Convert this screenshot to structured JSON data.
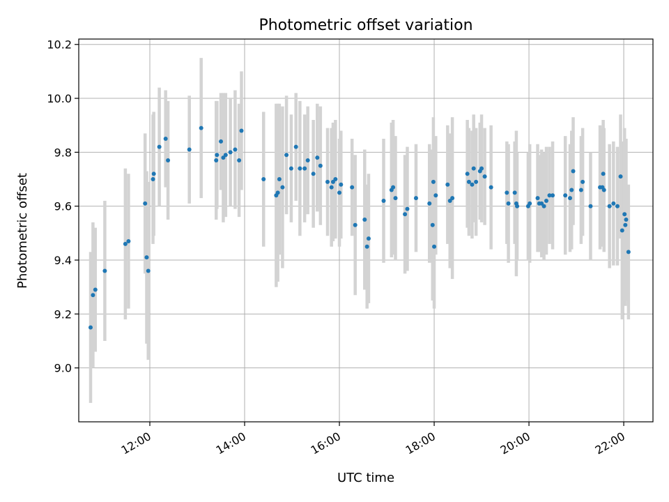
{
  "colors": {
    "points": "#1f77b4",
    "error_bars": "#d3d3d3",
    "grid": "#b0b0b0"
  },
  "chart_data": {
    "type": "scatter",
    "title": "Photometric offset variation",
    "xlabel": "UTC time",
    "ylabel": "Photometric offset",
    "x_unit": "UTC hours",
    "xlim": [
      "10:30",
      "22:37"
    ],
    "ylim": [
      8.8,
      10.22
    ],
    "grid": true,
    "legend": "none",
    "xticks": [
      {
        "label": "12:00",
        "value": "12:00"
      },
      {
        "label": "14:00",
        "value": "14:00"
      },
      {
        "label": "16:00",
        "value": "16:00"
      },
      {
        "label": "18:00",
        "value": "18:00"
      },
      {
        "label": "20:00",
        "value": "20:00"
      },
      {
        "label": "22:00",
        "value": "22:00"
      }
    ],
    "yticks": [
      {
        "label": "9.0",
        "value": 9.0
      },
      {
        "label": "9.2",
        "value": 9.2
      },
      {
        "label": "9.4",
        "value": 9.4
      },
      {
        "label": "9.6",
        "value": 9.6
      },
      {
        "label": "9.8",
        "value": 9.8
      },
      {
        "label": "10.0",
        "value": 10.0
      },
      {
        "label": "10.2",
        "value": 10.2
      }
    ],
    "points": [
      {
        "x": "10:45",
        "y": 9.15,
        "yerr": 0.28
      },
      {
        "x": "10:48",
        "y": 9.27,
        "yerr": 0.27
      },
      {
        "x": "10:51",
        "y": 9.29,
        "yerr": 0.23
      },
      {
        "x": "11:03",
        "y": 9.36,
        "yerr": 0.26
      },
      {
        "x": "11:29",
        "y": 9.46,
        "yerr": 0.28
      },
      {
        "x": "11:33",
        "y": 9.47,
        "yerr": 0.25
      },
      {
        "x": "11:54",
        "y": 9.61,
        "yerr": 0.26
      },
      {
        "x": "11:56",
        "y": 9.41,
        "yerr": 0.32
      },
      {
        "x": "11:58",
        "y": 9.36,
        "yerr": 0.33
      },
      {
        "x": "12:04",
        "y": 9.7,
        "yerr": 0.24
      },
      {
        "x": "12:05",
        "y": 9.72,
        "yerr": 0.23
      },
      {
        "x": "12:12",
        "y": 9.82,
        "yerr": 0.22
      },
      {
        "x": "12:20",
        "y": 9.85,
        "yerr": 0.18
      },
      {
        "x": "12:23",
        "y": 9.77,
        "yerr": 0.22
      },
      {
        "x": "12:50",
        "y": 9.81,
        "yerr": 0.2
      },
      {
        "x": "13:05",
        "y": 9.89,
        "yerr": 0.26
      },
      {
        "x": "13:24",
        "y": 9.77,
        "yerr": 0.22
      },
      {
        "x": "13:25",
        "y": 9.79,
        "yerr": 0.2
      },
      {
        "x": "13:30",
        "y": 9.84,
        "yerr": 0.18
      },
      {
        "x": "13:33",
        "y": 9.78,
        "yerr": 0.24
      },
      {
        "x": "13:36",
        "y": 9.79,
        "yerr": 0.23
      },
      {
        "x": "13:42",
        "y": 9.8,
        "yerr": 0.2
      },
      {
        "x": "13:48",
        "y": 9.81,
        "yerr": 0.22
      },
      {
        "x": "13:53",
        "y": 9.77,
        "yerr": 0.21
      },
      {
        "x": "13:56",
        "y": 9.88,
        "yerr": 0.22
      },
      {
        "x": "14:24",
        "y": 9.7,
        "yerr": 0.25
      },
      {
        "x": "14:40",
        "y": 9.64,
        "yerr": 0.34
      },
      {
        "x": "14:42",
        "y": 9.65,
        "yerr": 0.33
      },
      {
        "x": "14:44",
        "y": 9.7,
        "yerr": 0.28
      },
      {
        "x": "14:48",
        "y": 9.67,
        "yerr": 0.3
      },
      {
        "x": "14:53",
        "y": 9.79,
        "yerr": 0.22
      },
      {
        "x": "14:59",
        "y": 9.74,
        "yerr": 0.2
      },
      {
        "x": "15:05",
        "y": 9.82,
        "yerr": 0.2
      },
      {
        "x": "15:10",
        "y": 9.74,
        "yerr": 0.25
      },
      {
        "x": "15:16",
        "y": 9.74,
        "yerr": 0.2
      },
      {
        "x": "15:20",
        "y": 9.77,
        "yerr": 0.2
      },
      {
        "x": "15:27",
        "y": 9.72,
        "yerr": 0.2
      },
      {
        "x": "15:32",
        "y": 9.78,
        "yerr": 0.2
      },
      {
        "x": "15:36",
        "y": 9.75,
        "yerr": 0.22
      },
      {
        "x": "15:45",
        "y": 9.69,
        "yerr": 0.2
      },
      {
        "x": "15:50",
        "y": 9.67,
        "yerr": 0.22
      },
      {
        "x": "15:52",
        "y": 9.69,
        "yerr": 0.22
      },
      {
        "x": "15:55",
        "y": 9.7,
        "yerr": 0.22
      },
      {
        "x": "16:00",
        "y": 9.65,
        "yerr": 0.2
      },
      {
        "x": "16:02",
        "y": 9.68,
        "yerr": 0.2
      },
      {
        "x": "16:16",
        "y": 9.67,
        "yerr": 0.18
      },
      {
        "x": "16:20",
        "y": 9.53,
        "yerr": 0.26
      },
      {
        "x": "16:32",
        "y": 9.55,
        "yerr": 0.26
      },
      {
        "x": "16:35",
        "y": 9.45,
        "yerr": 0.23
      },
      {
        "x": "16:37",
        "y": 9.48,
        "yerr": 0.24
      },
      {
        "x": "16:56",
        "y": 9.62,
        "yerr": 0.23
      },
      {
        "x": "17:06",
        "y": 9.66,
        "yerr": 0.25
      },
      {
        "x": "17:08",
        "y": 9.67,
        "yerr": 0.25
      },
      {
        "x": "17:11",
        "y": 9.63,
        "yerr": 0.23
      },
      {
        "x": "17:23",
        "y": 9.57,
        "yerr": 0.22
      },
      {
        "x": "17:26",
        "y": 9.59,
        "yerr": 0.23
      },
      {
        "x": "17:37",
        "y": 9.63,
        "yerr": 0.2
      },
      {
        "x": "17:54",
        "y": 9.61,
        "yerr": 0.22
      },
      {
        "x": "17:58",
        "y": 9.53,
        "yerr": 0.28
      },
      {
        "x": "17:59",
        "y": 9.69,
        "yerr": 0.24
      },
      {
        "x": "18:00",
        "y": 9.45,
        "yerr": 0.23
      },
      {
        "x": "18:02",
        "y": 9.64,
        "yerr": 0.22
      },
      {
        "x": "18:17",
        "y": 9.68,
        "yerr": 0.22
      },
      {
        "x": "18:20",
        "y": 9.62,
        "yerr": 0.25
      },
      {
        "x": "18:23",
        "y": 9.63,
        "yerr": 0.3
      },
      {
        "x": "18:42",
        "y": 9.72,
        "yerr": 0.2
      },
      {
        "x": "18:44",
        "y": 9.69,
        "yerr": 0.2
      },
      {
        "x": "18:48",
        "y": 9.68,
        "yerr": 0.2
      },
      {
        "x": "18:50",
        "y": 9.74,
        "yerr": 0.2
      },
      {
        "x": "18:53",
        "y": 9.69,
        "yerr": 0.2
      },
      {
        "x": "18:58",
        "y": 9.73,
        "yerr": 0.18
      },
      {
        "x": "19:00",
        "y": 9.74,
        "yerr": 0.2
      },
      {
        "x": "19:04",
        "y": 9.71,
        "yerr": 0.18
      },
      {
        "x": "19:12",
        "y": 9.67,
        "yerr": 0.23
      },
      {
        "x": "19:32",
        "y": 9.65,
        "yerr": 0.19
      },
      {
        "x": "19:34",
        "y": 9.61,
        "yerr": 0.22
      },
      {
        "x": "19:42",
        "y": 9.65,
        "yerr": 0.19
      },
      {
        "x": "19:44",
        "y": 9.61,
        "yerr": 0.27
      },
      {
        "x": "19:45",
        "y": 9.6,
        "yerr": 0.2
      },
      {
        "x": "19:59",
        "y": 9.6,
        "yerr": 0.2
      },
      {
        "x": "20:01",
        "y": 9.61,
        "yerr": 0.22
      },
      {
        "x": "20:11",
        "y": 9.63,
        "yerr": 0.2
      },
      {
        "x": "20:13",
        "y": 9.61,
        "yerr": 0.18
      },
      {
        "x": "20:16",
        "y": 9.61,
        "yerr": 0.2
      },
      {
        "x": "20:19",
        "y": 9.6,
        "yerr": 0.2
      },
      {
        "x": "20:22",
        "y": 9.62,
        "yerr": 0.2
      },
      {
        "x": "20:26",
        "y": 9.64,
        "yerr": 0.18
      },
      {
        "x": "20:30",
        "y": 9.64,
        "yerr": 0.2
      },
      {
        "x": "20:46",
        "y": 9.64,
        "yerr": 0.22
      },
      {
        "x": "20:52",
        "y": 9.63,
        "yerr": 0.2
      },
      {
        "x": "20:54",
        "y": 9.66,
        "yerr": 0.22
      },
      {
        "x": "20:56",
        "y": 9.73,
        "yerr": 0.2
      },
      {
        "x": "21:06",
        "y": 9.66,
        "yerr": 0.2
      },
      {
        "x": "21:08",
        "y": 9.69,
        "yerr": 0.2
      },
      {
        "x": "21:18",
        "y": 9.6,
        "yerr": 0.2
      },
      {
        "x": "21:30",
        "y": 9.67,
        "yerr": 0.23
      },
      {
        "x": "21:33",
        "y": 9.67,
        "yerr": 0.22
      },
      {
        "x": "21:34",
        "y": 9.72,
        "yerr": 0.2
      },
      {
        "x": "21:35",
        "y": 9.66,
        "yerr": 0.23
      },
      {
        "x": "21:42",
        "y": 9.6,
        "yerr": 0.23
      },
      {
        "x": "21:47",
        "y": 9.61,
        "yerr": 0.23
      },
      {
        "x": "21:52",
        "y": 9.6,
        "yerr": 0.22
      },
      {
        "x": "21:56",
        "y": 9.71,
        "yerr": 0.23
      },
      {
        "x": "21:58",
        "y": 9.51,
        "yerr": 0.33
      },
      {
        "x": "22:01",
        "y": 9.57,
        "yerr": 0.32
      },
      {
        "x": "22:02",
        "y": 9.53,
        "yerr": 0.3
      },
      {
        "x": "22:03",
        "y": 9.55,
        "yerr": 0.3
      },
      {
        "x": "22:06",
        "y": 9.43,
        "yerr": 0.25
      }
    ]
  }
}
